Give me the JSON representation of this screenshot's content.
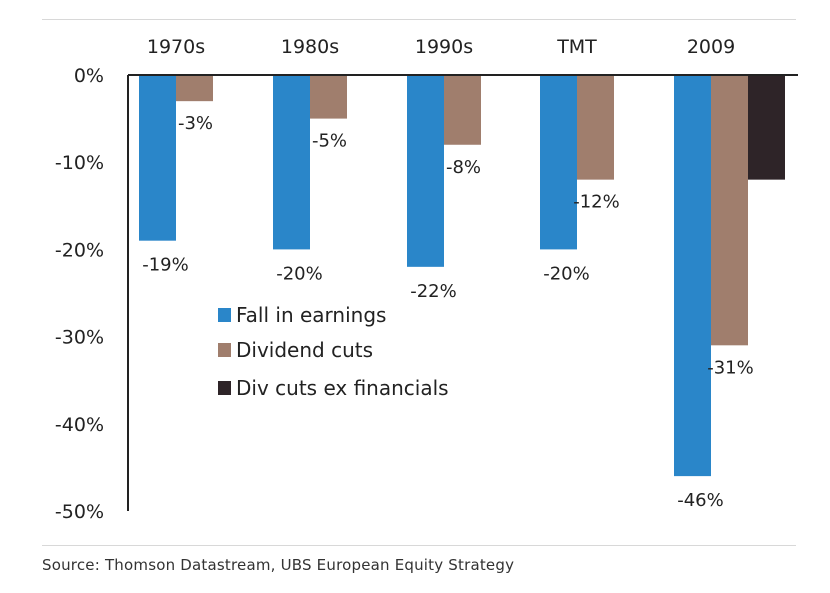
{
  "chart_data": {
    "type": "bar",
    "categories": [
      "1970s",
      "1980s",
      "1990s",
      "TMT",
      "2009"
    ],
    "series": [
      {
        "name": "Fall in earnings",
        "color": "#2a86c9",
        "values": [
          -19,
          -20,
          -22,
          -20,
          -46
        ],
        "labels": [
          "-19%",
          "-20%",
          "-22%",
          "-20%",
          "-46%"
        ]
      },
      {
        "name": "Dividend cuts",
        "color": "#a07e6d",
        "values": [
          -3,
          -5,
          -8,
          -12,
          -31
        ],
        "labels": [
          "-3%",
          "-5%",
          "-8%",
          "-12%",
          "-31%"
        ]
      },
      {
        "name": "Div cuts ex financials",
        "color": "#2e2428",
        "values": [
          null,
          null,
          null,
          null,
          -12
        ],
        "labels": [
          null,
          null,
          null,
          null,
          null
        ]
      }
    ],
    "ylim": [
      -50,
      0
    ],
    "yticks": [
      0,
      -10,
      -20,
      -30,
      -40,
      -50
    ],
    "ytick_labels": [
      "0%",
      "-10%",
      "-20%",
      "-30%",
      "-40%",
      "-50%"
    ],
    "legend_position": "center-left",
    "grid": false
  },
  "source": "Source:  Thomson Datastream, UBS European Equity Strategy"
}
